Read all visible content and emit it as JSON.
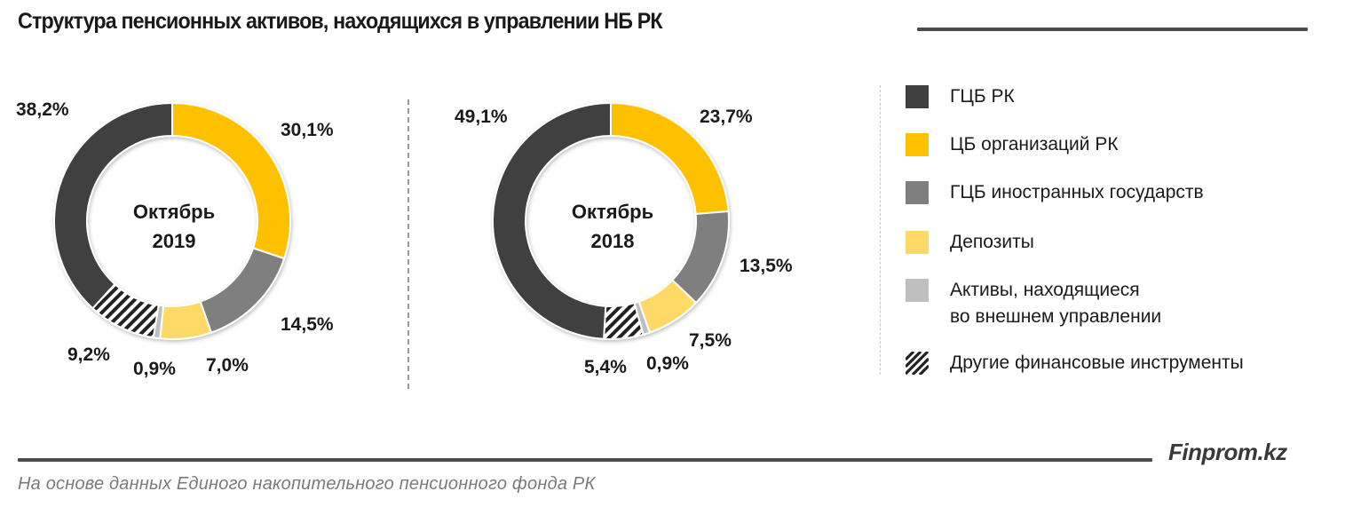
{
  "header": {
    "title": "Структура пенсионных активов, находящихся в управлении НБ РК"
  },
  "footer": {
    "brand": "Finprom.kz",
    "source": "На основе данных Единого накопительного пенсионного фонда РК"
  },
  "colors": {
    "gcb_rk": "#3f3f3f",
    "cb_org": "#ffc000",
    "gcb_foreign": "#7f7f7f",
    "deposits": "#ffd966",
    "external": "#bfbfbf",
    "other": "hatch"
  },
  "legend": [
    {
      "key": "gcb_rk",
      "label": "ГЦБ РК",
      "color": "#3f3f3f"
    },
    {
      "key": "cb_org",
      "label": "ЦБ организаций РК",
      "color": "#ffc000"
    },
    {
      "key": "gcb_foreign",
      "label": "ГЦБ иностранных государств",
      "color": "#7f7f7f"
    },
    {
      "key": "deposits",
      "label": "Депозиты",
      "color": "#ffd966"
    },
    {
      "key": "external",
      "label_line1": "Активы, находящиеся",
      "label_line2": "во внешнем управлении",
      "color": "#bfbfbf"
    },
    {
      "key": "other",
      "label": "Другие финансовые инструменты",
      "color": "hatch"
    }
  ],
  "chart_data": [
    {
      "type": "pie",
      "variant": "donut",
      "title": "Октябрь 2019",
      "center_label": [
        "Октябрь",
        "2019"
      ],
      "categories": [
        "ЦБ организаций РК",
        "ГЦБ иностранных государств",
        "Депозиты",
        "Активы, находящиеся во внешнем управлении",
        "Другие финансовые инструменты",
        "ГЦБ РК"
      ],
      "values": [
        30.1,
        14.5,
        7.0,
        0.9,
        9.2,
        38.2
      ],
      "value_labels": [
        "30,1%",
        "14,5%",
        "7,0%",
        "0,9%",
        "9,2%",
        "38,2%"
      ],
      "unit": "%"
    },
    {
      "type": "pie",
      "variant": "donut",
      "title": "Октябрь 2018",
      "center_label": [
        "Октябрь",
        "2018"
      ],
      "categories": [
        "ЦБ организаций РК",
        "ГЦБ иностранных государств",
        "Депозиты",
        "Активы, находящиеся во внешнем управлении",
        "Другие финансовые инструменты",
        "ГЦБ РК"
      ],
      "values": [
        23.7,
        13.5,
        7.5,
        0.9,
        5.4,
        49.1
      ],
      "value_labels": [
        "23,7%",
        "13,5%",
        "7,5%",
        "0,9%",
        "5,4%",
        "49,1%"
      ],
      "unit": "%"
    }
  ]
}
